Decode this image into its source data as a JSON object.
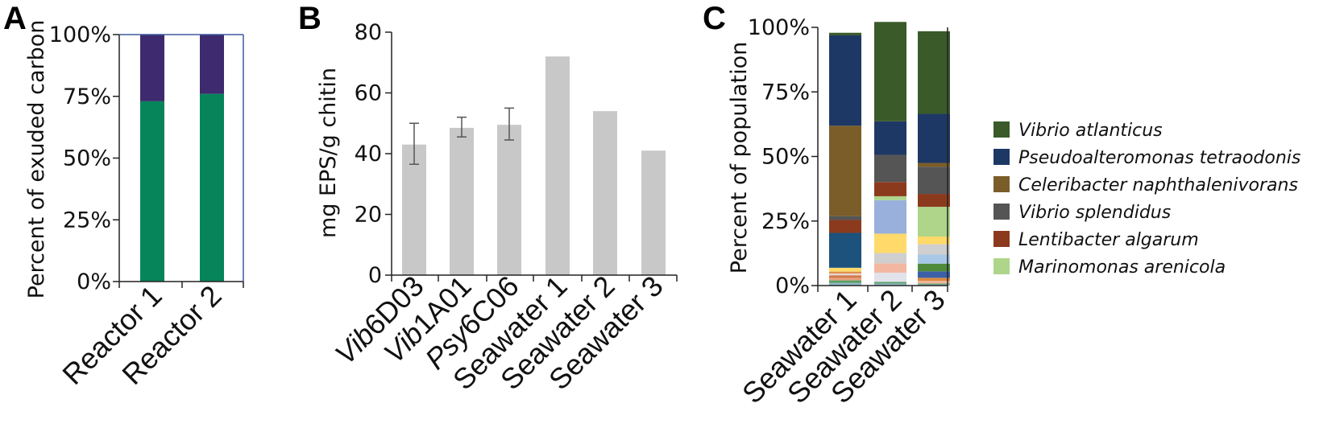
{
  "chart_data": [
    {
      "panel": "A",
      "type": "bar",
      "stacked": true,
      "ylabel": "Percent of exuded carbon",
      "ylim": [
        0,
        100
      ],
      "yticks": [
        "0%",
        "25%",
        "50%",
        "75%",
        "100%"
      ],
      "categories": [
        "Reactor 1",
        "Reactor 2"
      ],
      "series": [
        {
          "color": "#06845a",
          "values": [
            73,
            76
          ]
        },
        {
          "color": "#3e2a6e",
          "values": [
            27,
            24
          ]
        }
      ]
    },
    {
      "panel": "B",
      "type": "bar",
      "ylabel": "mg EPS/g chitin",
      "ylim": [
        0,
        80
      ],
      "yticks": [
        "0",
        "20",
        "40",
        "60",
        "80"
      ],
      "categories": [
        {
          "prefix": "Vib",
          "suffix": "6D03"
        },
        {
          "prefix": "Vib",
          "suffix": "1A01"
        },
        {
          "prefix": "Psy",
          "suffix": "6C06"
        },
        {
          "prefix": "",
          "suffix": "Seawater 1"
        },
        {
          "prefix": "",
          "suffix": "Seawater 2"
        },
        {
          "prefix": "",
          "suffix": "Seawater 3"
        }
      ],
      "values": [
        43,
        48.5,
        49.5,
        72,
        54,
        41
      ],
      "errors": [
        [
          36.5,
          50
        ],
        [
          45.5,
          52
        ],
        [
          44.5,
          55
        ],
        null,
        null,
        null
      ],
      "color": "#c8c8c8"
    },
    {
      "panel": "C",
      "type": "bar",
      "stacked": true,
      "ylabel": "Percent of population",
      "ylim": [
        0,
        100
      ],
      "yticks": [
        "0%",
        "25%",
        "50%",
        "75%",
        "100%"
      ],
      "categories": [
        "Seawater 1",
        "Seawater 2",
        "Seawater 3"
      ],
      "legend_position": "right",
      "series": [
        {
          "name": "",
          "color": "#8fb8c9",
          "values": [
            1,
            0.8,
            0.4
          ]
        },
        {
          "name": "",
          "color": "#5aa06a",
          "values": [
            1,
            0.6,
            0.4
          ]
        },
        {
          "name": "",
          "color": "#e6a07a",
          "values": [
            1,
            0,
            0
          ]
        },
        {
          "name": "",
          "color": "#d07a4a",
          "values": [
            1,
            0,
            0
          ]
        },
        {
          "name": "",
          "color": "#e2e2ea",
          "values": [
            0.4,
            3.6,
            0
          ]
        },
        {
          "name": "",
          "color": "#f2b7a0",
          "values": [
            0.4,
            3.6,
            1
          ]
        },
        {
          "name": "",
          "color": "#d88a40",
          "values": [
            0.6,
            0,
            1.2
          ]
        },
        {
          "name": "",
          "color": "#3c60a8",
          "values": [
            0,
            0,
            2.5
          ]
        },
        {
          "name": "",
          "color": "#4e8a3a",
          "values": [
            0,
            0,
            3
          ]
        },
        {
          "name": "",
          "color": "#a8c8e8",
          "values": [
            0,
            0,
            3.5
          ]
        },
        {
          "name": "",
          "color": "#cfcfcf",
          "values": [
            0,
            4,
            4
          ]
        },
        {
          "name": "",
          "color": "#ffd96a",
          "values": [
            1.5,
            7.5,
            3
          ]
        },
        {
          "name": "",
          "color": "#9ab0dc",
          "values": [
            0,
            13,
            0
          ]
        },
        {
          "name": "",
          "color": "#1c527c",
          "values": [
            13.5,
            0,
            0
          ]
        },
        {
          "name": "Marinomonas arenicola",
          "color": "#aed58a",
          "values": [
            0,
            1.5,
            11.5
          ]
        },
        {
          "name": "Lentibacter algarum",
          "color": "#8c3a1e",
          "values": [
            5,
            5.5,
            5
          ]
        },
        {
          "name": "Vibrio splendidus",
          "color": "#555555",
          "values": [
            1.5,
            10.5,
            10.5
          ]
        },
        {
          "name": "Celeribacter naphthalenivorans",
          "color": "#7b5d2a",
          "values": [
            35,
            0,
            1.5
          ]
        },
        {
          "name": "Pseudoalteromonas tetraodonis",
          "color": "#1e3866",
          "values": [
            35,
            13,
            19
          ]
        },
        {
          "name": "Vibrio atlanticus",
          "color": "#3a5a2a",
          "values": [
            1,
            38.5,
            32
          ]
        }
      ],
      "legend": [
        {
          "name": "Vibrio atlanticus",
          "color": "#3a5a2a"
        },
        {
          "name": "Pseudoalteromonas tetraodonis",
          "color": "#1e3866"
        },
        {
          "name": "Celeribacter naphthalenivorans",
          "color": "#7b5d2a"
        },
        {
          "name": "Vibrio splendidus",
          "color": "#555555"
        },
        {
          "name": "Lentibacter algarum",
          "color": "#8c3a1e"
        },
        {
          "name": "Marinomonas arenicola",
          "color": "#aed58a"
        }
      ]
    }
  ]
}
